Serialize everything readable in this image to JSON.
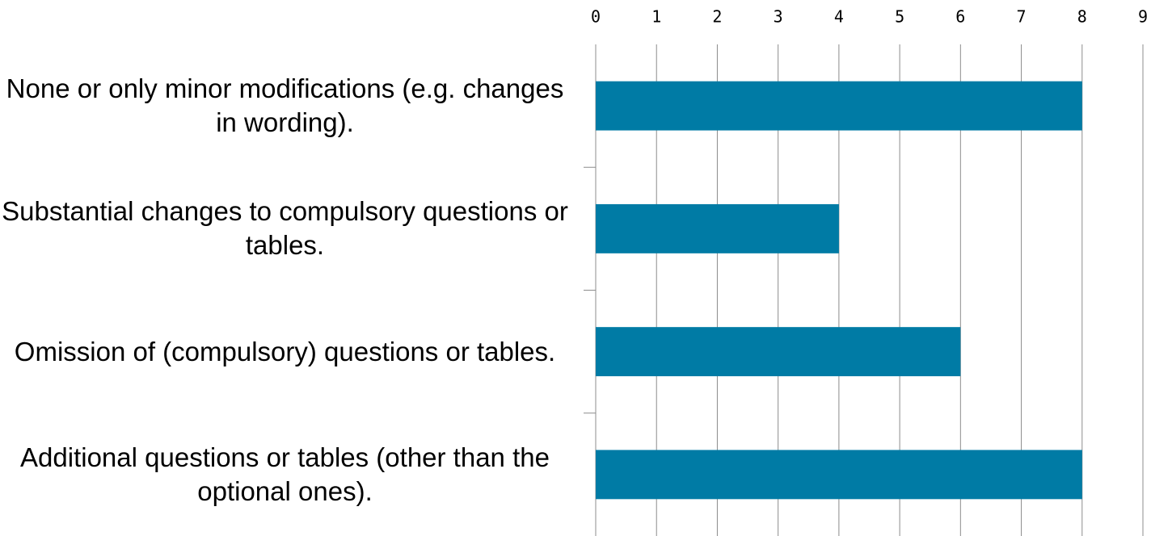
{
  "chart_data": {
    "type": "barh",
    "categories": [
      "None or only minor modifications (e.g. changes in wording).",
      "Substantial changes to compulsory questions or tables.",
      "Omission of (compulsory) questions or tables.",
      "Additional questions or tables (other than the optional ones)."
    ],
    "values": [
      8,
      4,
      6,
      8
    ],
    "color": "#007ba5",
    "xlim": [
      0,
      9
    ],
    "xticks": [
      0,
      1,
      2,
      3,
      4,
      5,
      6,
      7,
      8,
      9
    ],
    "grid": true
  }
}
